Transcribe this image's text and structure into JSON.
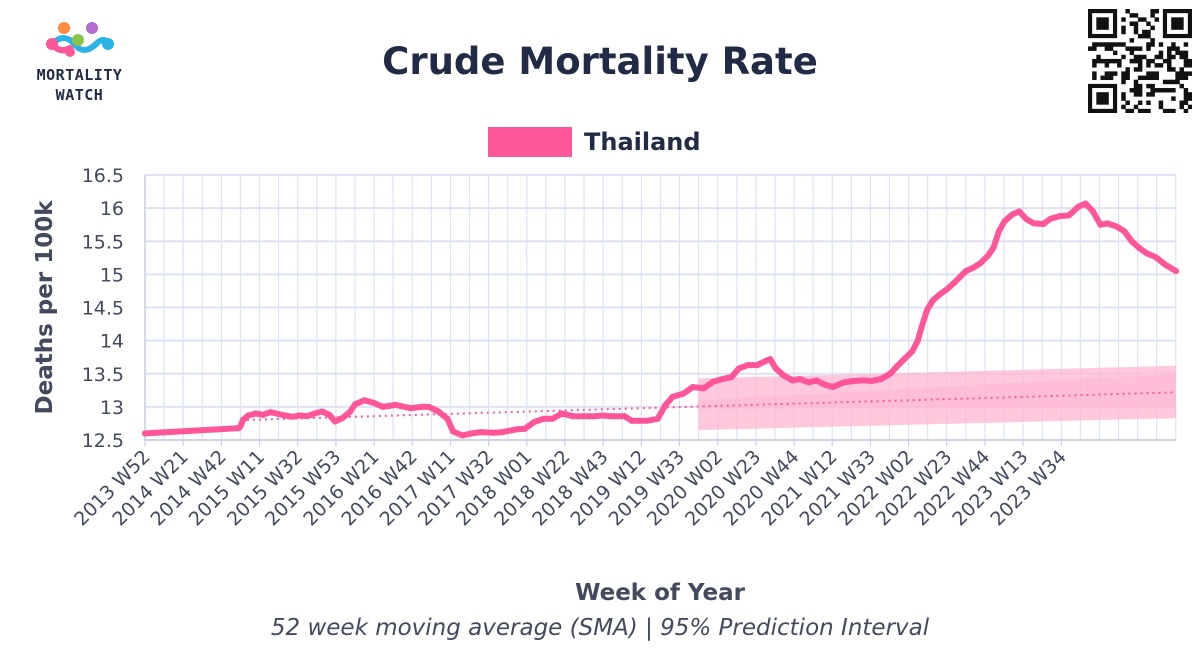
{
  "header": {
    "logo_line1": "MORTALITY",
    "logo_line2": "WATCH",
    "title": "Crude Mortality Rate"
  },
  "footer": {
    "subtitle": "52 week moving average (SMA) | 95% Prediction Interval"
  },
  "colors": {
    "series": "#ff5599",
    "band": "#ffb6d1",
    "grid": "#dde3f5",
    "text": "#222b45"
  },
  "chart_data": {
    "type": "line",
    "title": "Crude Mortality Rate",
    "xlabel": "Week of Year",
    "ylabel": "Deaths per 100k",
    "ylim": [
      12.5,
      16.5
    ],
    "yticks": [
      "12.5",
      "13",
      "13.5",
      "14",
      "14.5",
      "15",
      "15.5",
      "16",
      "16.5"
    ],
    "xticks": [
      "2013 W52",
      "2014 W21",
      "2014 W42",
      "2015 W11",
      "2015 W32",
      "2015 W53",
      "2016 W21",
      "2016 W42",
      "2017 W11",
      "2017 W32",
      "2018 W01",
      "2018 W22",
      "2018 W43",
      "2019 W12",
      "2019 W33",
      "2020 W02",
      "2020 W23",
      "2020 W44",
      "2021 W12",
      "2021 W33",
      "2022 W02",
      "2022 W23",
      "2022 W44",
      "2023 W13",
      "2023 W34"
    ],
    "x_domain_weeks": 559,
    "grid": true,
    "legend_position": "top-center",
    "series": [
      {
        "name": "Thailand",
        "points": [
          [
            0,
            12.6
          ],
          [
            51,
            12.68
          ],
          [
            52,
            12.72
          ],
          [
            53,
            12.8
          ],
          [
            56,
            12.87
          ],
          [
            60,
            12.9
          ],
          [
            64,
            12.88
          ],
          [
            68,
            12.92
          ],
          [
            76,
            12.87
          ],
          [
            80,
            12.85
          ],
          [
            84,
            12.87
          ],
          [
            88,
            12.86
          ],
          [
            92,
            12.9
          ],
          [
            96,
            12.93
          ],
          [
            100,
            12.88
          ],
          [
            103,
            12.78
          ],
          [
            107,
            12.83
          ],
          [
            111,
            12.92
          ],
          [
            114,
            13.04
          ],
          [
            119,
            13.1
          ],
          [
            124,
            13.06
          ],
          [
            129,
            13.0
          ],
          [
            136,
            13.03
          ],
          [
            144,
            12.98
          ],
          [
            150,
            13.0
          ],
          [
            154,
            13.0
          ],
          [
            159,
            12.93
          ],
          [
            164,
            12.82
          ],
          [
            167,
            12.63
          ],
          [
            172,
            12.57
          ],
          [
            177,
            12.6
          ],
          [
            182,
            12.62
          ],
          [
            189,
            12.61
          ],
          [
            194,
            12.62
          ],
          [
            201,
            12.66
          ],
          [
            206,
            12.67
          ],
          [
            211,
            12.77
          ],
          [
            216,
            12.82
          ],
          [
            221,
            12.82
          ],
          [
            226,
            12.9
          ],
          [
            232,
            12.86
          ],
          [
            238,
            12.86
          ],
          [
            244,
            12.86
          ],
          [
            248,
            12.87
          ],
          [
            253,
            12.86
          ],
          [
            260,
            12.86
          ],
          [
            264,
            12.79
          ],
          [
            272,
            12.79
          ],
          [
            278,
            12.82
          ],
          [
            282,
            13.02
          ],
          [
            286,
            13.15
          ],
          [
            292,
            13.2
          ],
          [
            297,
            13.3
          ],
          [
            303,
            13.28
          ],
          [
            308,
            13.38
          ],
          [
            313,
            13.42
          ],
          [
            318,
            13.45
          ],
          [
            322,
            13.58
          ],
          [
            327,
            13.63
          ],
          [
            332,
            13.63
          ],
          [
            337,
            13.7
          ],
          [
            339,
            13.72
          ],
          [
            342,
            13.58
          ],
          [
            346,
            13.48
          ],
          [
            351,
            13.4
          ],
          [
            355,
            13.42
          ],
          [
            360,
            13.37
          ],
          [
            364,
            13.4
          ],
          [
            369,
            13.33
          ],
          [
            373,
            13.3
          ],
          [
            379,
            13.37
          ],
          [
            384,
            13.39
          ],
          [
            390,
            13.4
          ],
          [
            394,
            13.39
          ],
          [
            399,
            13.42
          ],
          [
            404,
            13.5
          ],
          [
            408,
            13.62
          ],
          [
            412,
            13.73
          ],
          [
            416,
            13.84
          ],
          [
            419,
            14.0
          ],
          [
            421,
            14.2
          ],
          [
            424,
            14.46
          ],
          [
            427,
            14.6
          ],
          [
            431,
            14.7
          ],
          [
            435,
            14.78
          ],
          [
            439,
            14.88
          ],
          [
            445,
            15.05
          ],
          [
            449,
            15.1
          ],
          [
            453,
            15.17
          ],
          [
            457,
            15.28
          ],
          [
            460,
            15.4
          ],
          [
            463,
            15.65
          ],
          [
            466,
            15.8
          ],
          [
            470,
            15.9
          ],
          [
            474,
            15.95
          ],
          [
            478,
            15.83
          ],
          [
            482,
            15.77
          ],
          [
            487,
            15.76
          ],
          [
            491,
            15.84
          ],
          [
            496,
            15.88
          ],
          [
            501,
            15.89
          ],
          [
            506,
            16.02
          ],
          [
            510,
            16.07
          ],
          [
            514,
            15.95
          ],
          [
            518,
            15.75
          ],
          [
            522,
            15.77
          ],
          [
            527,
            15.72
          ],
          [
            531,
            15.65
          ],
          [
            535,
            15.5
          ],
          [
            539,
            15.4
          ],
          [
            543,
            15.32
          ],
          [
            548,
            15.26
          ],
          [
            553,
            15.15
          ],
          [
            559,
            15.05
          ]
        ]
      }
    ],
    "baseline": {
      "start": [
        52,
        12.8
      ],
      "end": [
        559,
        13.22
      ],
      "style": "dotted"
    },
    "prediction_interval": {
      "start_week": 300,
      "end_week": 559,
      "lower_start": 12.65,
      "lower_end": 12.83,
      "upper_start": 13.43,
      "upper_end": 13.62,
      "inner_lower_start": 12.97,
      "inner_lower_end": 13.0,
      "inner_upper_start": 13.1,
      "inner_upper_end": 13.5
    }
  }
}
